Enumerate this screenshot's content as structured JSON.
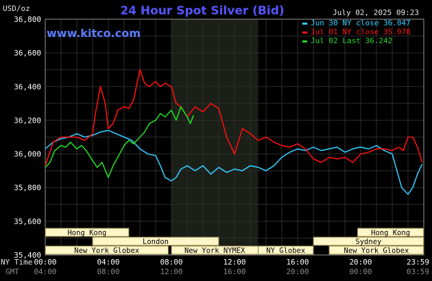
{
  "chart_data": {
    "type": "line",
    "title": "24 Hour Spot Silver (Bid)",
    "site": "www.kitco.com",
    "timestamp": "July 02, 2025 09:23",
    "ylabel": "USD/oz",
    "ylim": [
      35.4,
      36.8
    ],
    "yticks": [
      "36,800",
      "36,600",
      "36,400",
      "36,200",
      "36,000",
      "35,800",
      "35,600",
      "35,400"
    ],
    "xlim": [
      0,
      24
    ],
    "ny_time_label": "NY Time",
    "gmt_label": "GMT",
    "xticks_ny": [
      "00:00",
      "04:00",
      "08:00",
      "12:00",
      "16:00",
      "20:00",
      "23:59"
    ],
    "xticks_gmt": [
      "04:00",
      "08:00",
      "12:00",
      "16:00",
      "20:00",
      "00:00",
      "03:59"
    ],
    "grid": true,
    "legend_position": "top-right",
    "shaded_region": [
      8,
      13.5
    ],
    "series": [
      {
        "name": "Jun 30 NY close 36.047",
        "color": "#33ccff",
        "x": [
          0,
          0.5,
          1,
          1.5,
          2,
          2.5,
          3,
          3.5,
          4,
          4.5,
          5,
          5.5,
          6,
          6.5,
          7,
          7.3,
          7.6,
          8,
          8.3,
          8.6,
          9,
          9.5,
          10,
          10.5,
          11,
          11.5,
          12,
          12.5,
          13,
          13.5,
          14,
          14.5,
          15,
          15.5,
          16,
          16.5,
          17,
          17.5,
          18,
          18.5,
          19,
          19.5,
          20,
          20.5,
          21,
          21.5,
          22,
          22.3,
          22.6,
          23,
          23.3,
          23.6,
          23.9
        ],
        "y": [
          36.03,
          36.07,
          36.09,
          36.1,
          36.12,
          36.1,
          36.11,
          36.13,
          36.14,
          36.12,
          36.1,
          36.08,
          36.03,
          36.0,
          35.99,
          35.93,
          35.86,
          35.84,
          35.86,
          35.91,
          35.93,
          35.9,
          35.93,
          35.88,
          35.92,
          35.89,
          35.91,
          35.9,
          35.93,
          35.92,
          35.9,
          35.93,
          35.98,
          36.01,
          36.03,
          36.02,
          36.04,
          36.02,
          36.03,
          36.04,
          36.01,
          36.03,
          36.04,
          36.03,
          36.05,
          36.02,
          36.0,
          35.9,
          35.8,
          35.76,
          35.8,
          35.88,
          35.94
        ]
      },
      {
        "name": "Jul 01 NY close 35.978",
        "color": "#ff1010",
        "x": [
          0,
          0.5,
          1,
          1.5,
          2,
          2.5,
          3,
          3.2,
          3.5,
          3.8,
          4,
          4.3,
          4.6,
          5,
          5.3,
          5.6,
          6,
          6.3,
          6.6,
          7,
          7.3,
          7.6,
          8,
          8.3,
          8.6,
          9,
          9.5,
          10,
          10.5,
          11,
          11.5,
          12,
          12.5,
          13,
          13.5,
          14,
          14.5,
          15,
          15.5,
          16,
          16.5,
          17,
          17.5,
          18,
          18.5,
          19,
          19.5,
          20,
          20.5,
          21,
          21.5,
          22,
          22.4,
          22.7,
          23,
          23.3,
          23.6,
          23.9
        ],
        "y": [
          35.93,
          36.07,
          36.1,
          36.1,
          36.1,
          36.08,
          36.12,
          36.25,
          36.4,
          36.3,
          36.15,
          36.18,
          36.26,
          36.28,
          36.27,
          36.32,
          36.5,
          36.42,
          36.4,
          36.43,
          36.4,
          36.42,
          36.4,
          36.3,
          36.28,
          36.22,
          36.28,
          36.25,
          36.3,
          36.27,
          36.1,
          36.0,
          36.15,
          36.12,
          36.08,
          36.1,
          36.07,
          36.05,
          36.04,
          36.06,
          36.03,
          35.97,
          35.95,
          35.98,
          35.97,
          35.98,
          35.95,
          36.0,
          36.01,
          36.03,
          36.03,
          36.02,
          36.04,
          36.02,
          36.1,
          36.1,
          36.04,
          35.95
        ]
      },
      {
        "name": "Jul 02 Last 36.242",
        "color": "#22dd22",
        "x": [
          0,
          0.3,
          0.6,
          1,
          1.3,
          1.6,
          2,
          2.3,
          2.6,
          3,
          3.3,
          3.6,
          4,
          4.3,
          4.6,
          5,
          5.3,
          5.6,
          6,
          6.3,
          6.6,
          7,
          7.3,
          7.6,
          8,
          8.3,
          8.6,
          9,
          9.2,
          9.4
        ],
        "y": [
          35.92,
          35.95,
          36.02,
          36.05,
          36.04,
          36.07,
          36.03,
          36.05,
          36.02,
          35.96,
          35.92,
          35.95,
          35.86,
          35.93,
          35.98,
          36.05,
          36.08,
          36.06,
          36.1,
          36.13,
          36.18,
          36.2,
          36.24,
          36.22,
          36.26,
          36.2,
          36.28,
          36.22,
          36.18,
          36.23
        ]
      }
    ],
    "market_bars": [
      {
        "label": "Hong Kong",
        "start": 0,
        "end": 5.3,
        "row": 0
      },
      {
        "label": "Hong Kong",
        "start": 19.8,
        "end": 23.99,
        "row": 0
      },
      {
        "label": "London",
        "start": 3,
        "end": 11,
        "row": 1
      },
      {
        "label": "Sydney",
        "start": 17,
        "end": 23.99,
        "row": 1
      },
      {
        "label": "New York Globex",
        "start": 0,
        "end": 7.8,
        "row": 2
      },
      {
        "label": "New York NYMEX",
        "start": 8,
        "end": 13.5,
        "row": 2
      },
      {
        "label": "NY Globex",
        "start": 13.5,
        "end": 17,
        "row": 2
      },
      {
        "label": "New York Globex",
        "start": 18,
        "end": 23.99,
        "row": 2
      }
    ]
  }
}
